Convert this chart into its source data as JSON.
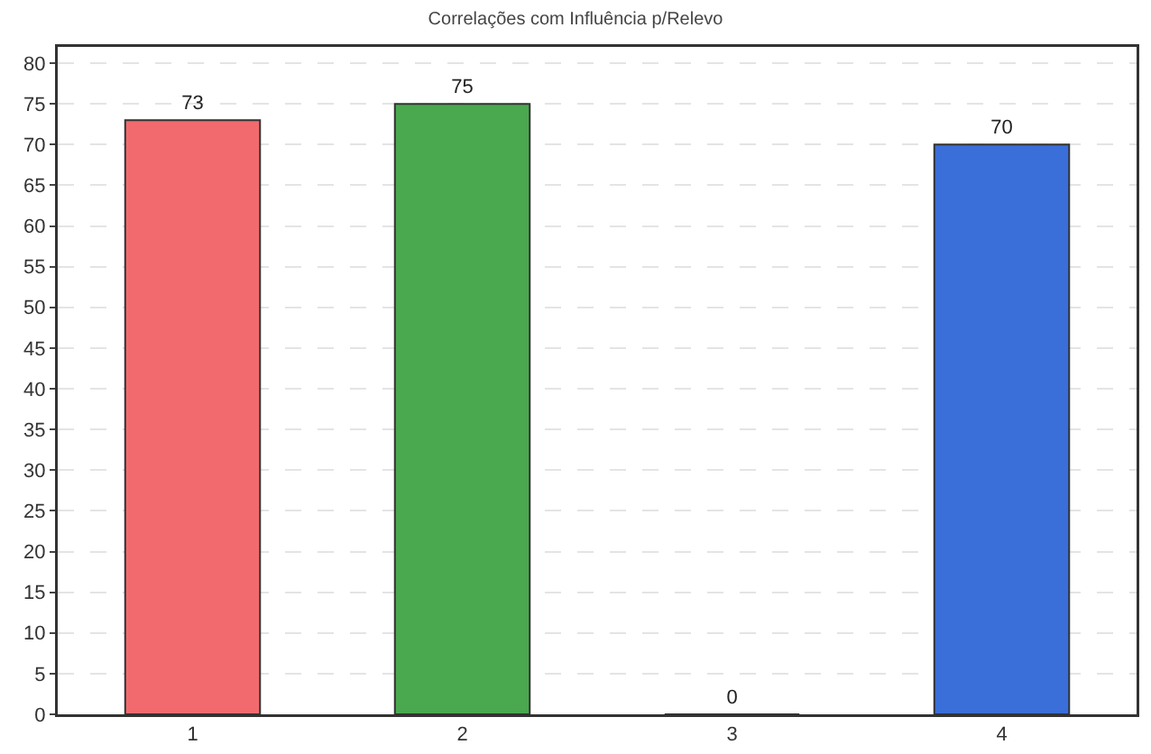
{
  "chart_data": {
    "type": "bar",
    "title": "Correlações com Influência p/Relevo",
    "categories": [
      "1",
      "2",
      "3",
      "4"
    ],
    "values": [
      73,
      75,
      0,
      70
    ],
    "colors": [
      "#f26a6e",
      "#4aa84e",
      "#333333",
      "#3a6ed8"
    ],
    "ylim": [
      0,
      82
    ],
    "yticks": [
      0,
      5,
      10,
      15,
      20,
      25,
      30,
      35,
      40,
      45,
      50,
      55,
      60,
      65,
      70,
      75,
      80
    ],
    "grid": "y",
    "data_labels": true
  }
}
